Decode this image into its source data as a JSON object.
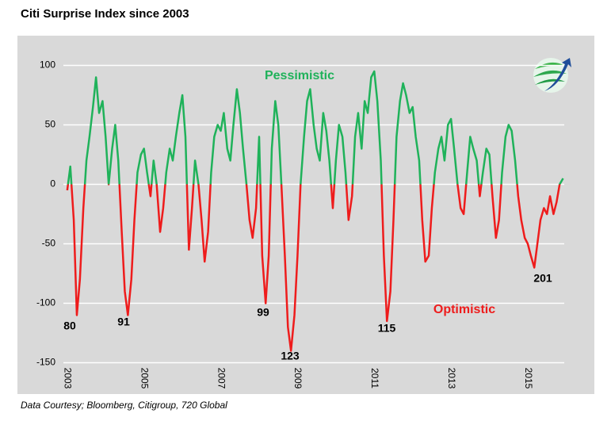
{
  "chart_data": {
    "type": "line",
    "title": "Citi Surprise Index since 2003",
    "source": "Data Courtesy; Bloomberg, Citigroup, 720 Global",
    "positive_color": "#1fb25a",
    "negative_color": "#ee1c1c",
    "background": "#d9d9d9",
    "grid": true,
    "xlim": [
      2002.9,
      2015.95
    ],
    "xticks": [
      2003,
      2005,
      2007,
      2009,
      2011,
      2013,
      2015
    ],
    "ylim": [
      -160,
      115
    ],
    "yticks": [
      100,
      50,
      0,
      -50,
      -100,
      -150
    ],
    "annotations": [
      {
        "text": "Pessimistic",
        "color": "#1fb25a"
      },
      {
        "text": "Optimistic",
        "color": "#ee1c1c"
      },
      {
        "text": "80",
        "color": "#000000"
      },
      {
        "text": "91",
        "color": "#000000"
      },
      {
        "text": "99",
        "color": "#000000"
      },
      {
        "text": "123",
        "color": "#000000"
      },
      {
        "text": "115",
        "color": "#000000"
      },
      {
        "text": "201",
        "color": "#000000"
      }
    ],
    "series": [
      {
        "name": "Citi Surprise Index",
        "x": [
          2003.0,
          2003.08,
          2003.17,
          2003.25,
          2003.33,
          2003.42,
          2003.5,
          2003.58,
          2003.67,
          2003.75,
          2003.83,
          2003.92,
          2004.0,
          2004.08,
          2004.17,
          2004.25,
          2004.33,
          2004.42,
          2004.5,
          2004.58,
          2004.67,
          2004.75,
          2004.83,
          2004.92,
          2005.0,
          2005.08,
          2005.17,
          2005.25,
          2005.33,
          2005.42,
          2005.5,
          2005.58,
          2005.67,
          2005.75,
          2005.83,
          2005.92,
          2006.0,
          2006.08,
          2006.17,
          2006.25,
          2006.33,
          2006.42,
          2006.5,
          2006.58,
          2006.67,
          2006.75,
          2006.83,
          2006.92,
          2007.0,
          2007.08,
          2007.17,
          2007.25,
          2007.33,
          2007.42,
          2007.5,
          2007.58,
          2007.67,
          2007.75,
          2007.83,
          2007.92,
          2008.0,
          2008.08,
          2008.17,
          2008.25,
          2008.33,
          2008.42,
          2008.5,
          2008.58,
          2008.67,
          2008.75,
          2008.83,
          2008.92,
          2009.0,
          2009.08,
          2009.17,
          2009.25,
          2009.33,
          2009.42,
          2009.5,
          2009.58,
          2009.67,
          2009.75,
          2009.83,
          2009.92,
          2010.0,
          2010.08,
          2010.17,
          2010.25,
          2010.33,
          2010.42,
          2010.5,
          2010.58,
          2010.67,
          2010.75,
          2010.83,
          2010.92,
          2011.0,
          2011.08,
          2011.17,
          2011.25,
          2011.33,
          2011.42,
          2011.5,
          2011.58,
          2011.67,
          2011.75,
          2011.83,
          2011.92,
          2012.0,
          2012.08,
          2012.17,
          2012.25,
          2012.33,
          2012.42,
          2012.5,
          2012.58,
          2012.67,
          2012.75,
          2012.83,
          2012.92,
          2013.0,
          2013.08,
          2013.17,
          2013.25,
          2013.33,
          2013.42,
          2013.5,
          2013.58,
          2013.67,
          2013.75,
          2013.83,
          2013.92,
          2014.0,
          2014.08,
          2014.17,
          2014.25,
          2014.33,
          2014.42,
          2014.5,
          2014.58,
          2014.67,
          2014.75,
          2014.83,
          2014.92,
          2015.0,
          2015.08,
          2015.17,
          2015.25,
          2015.33,
          2015.42,
          2015.5,
          2015.58,
          2015.67,
          2015.75,
          2015.83,
          2015.92
        ],
        "values": [
          -5,
          15,
          -30,
          -110,
          -80,
          -20,
          20,
          40,
          65,
          90,
          60,
          70,
          40,
          0,
          30,
          50,
          20,
          -40,
          -90,
          -110,
          -80,
          -30,
          10,
          25,
          30,
          10,
          -10,
          20,
          0,
          -40,
          -20,
          10,
          30,
          20,
          40,
          60,
          75,
          40,
          -55,
          -20,
          20,
          0,
          -30,
          -65,
          -40,
          10,
          40,
          50,
          45,
          60,
          30,
          20,
          50,
          80,
          60,
          30,
          0,
          -30,
          -45,
          -20,
          40,
          -60,
          -100,
          -60,
          30,
          70,
          50,
          0,
          -60,
          -120,
          -140,
          -110,
          -60,
          0,
          40,
          70,
          80,
          50,
          30,
          20,
          60,
          45,
          20,
          -20,
          20,
          50,
          40,
          10,
          -30,
          -10,
          40,
          60,
          30,
          70,
          60,
          90,
          95,
          70,
          20,
          -60,
          -115,
          -90,
          -30,
          40,
          70,
          85,
          75,
          60,
          65,
          40,
          20,
          -30,
          -65,
          -60,
          -20,
          10,
          30,
          40,
          20,
          50,
          55,
          30,
          0,
          -20,
          -25,
          10,
          40,
          30,
          20,
          -10,
          10,
          30,
          25,
          -10,
          -45,
          -30,
          10,
          40,
          50,
          45,
          20,
          -10,
          -30,
          -45,
          -50,
          -60,
          -70,
          -50,
          -30,
          -20,
          -25,
          -10,
          -25,
          -15,
          0,
          5
        ]
      }
    ]
  }
}
